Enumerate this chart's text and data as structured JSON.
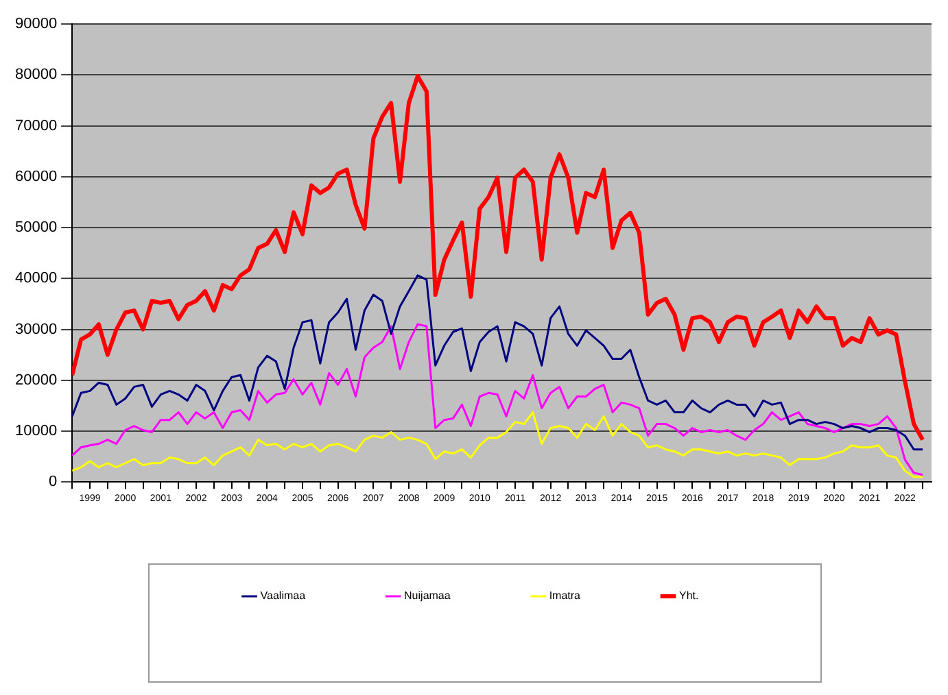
{
  "chart_data": {
    "type": "line",
    "x": [
      1999,
      1999.25,
      1999.5,
      1999.75,
      2000,
      2000.25,
      2000.5,
      2000.75,
      2001,
      2001.25,
      2001.5,
      2001.75,
      2002,
      2002.25,
      2002.5,
      2002.75,
      2003,
      2003.25,
      2003.5,
      2003.75,
      2004,
      2004.25,
      2004.5,
      2004.75,
      2005,
      2005.25,
      2005.5,
      2005.75,
      2006,
      2006.25,
      2006.5,
      2006.75,
      2007,
      2007.25,
      2007.5,
      2007.75,
      2008,
      2008.25,
      2008.5,
      2008.75,
      2009,
      2009.25,
      2009.5,
      2009.75,
      2010,
      2010.25,
      2010.5,
      2010.75,
      2011,
      2011.25,
      2011.5,
      2011.75,
      2012,
      2012.25,
      2012.5,
      2012.75,
      2013,
      2013.25,
      2013.5,
      2013.75,
      2014,
      2014.25,
      2014.5,
      2014.75,
      2015,
      2015.25,
      2015.5,
      2015.75,
      2016,
      2016.25,
      2016.5,
      2016.75,
      2017,
      2017.25,
      2017.5,
      2017.75,
      2018,
      2018.25,
      2018.5,
      2018.75,
      2019,
      2019.25,
      2019.5,
      2019.75,
      2020,
      2020.25,
      2020.5,
      2020.75,
      2021,
      2021.25,
      2021.5,
      2021.75,
      2022,
      2022.25,
      2022.5,
      2022.75,
      2023
    ],
    "series": [
      {
        "name": "Vaalimaa",
        "color": "#000080",
        "values": [
          12900,
          17500,
          17900,
          19500,
          19100,
          15200,
          16400,
          18700,
          19100,
          14800,
          17200,
          17900,
          17200,
          16000,
          19100,
          17900,
          14100,
          17900,
          20600,
          21000,
          16000,
          22500,
          24800,
          23700,
          18300,
          26400,
          31400,
          31800,
          23300,
          31400,
          33300,
          36000,
          26000,
          33700,
          36800,
          35600,
          29100,
          34500,
          37500,
          40600,
          39800,
          22900,
          26800,
          29500,
          30200,
          21800,
          27500,
          29500,
          30600,
          23700,
          31400,
          30600,
          29100,
          22900,
          32200,
          34500,
          29100,
          26800,
          29800,
          28300,
          26800,
          24200,
          24200,
          26000,
          20600,
          16000,
          15200,
          16000,
          13700,
          13700,
          16000,
          14500,
          13700,
          15200,
          16000,
          15200,
          15200,
          12900,
          16000,
          15200,
          15600,
          11400,
          12200,
          12200,
          11400,
          11800,
          11400,
          10600,
          11000,
          10600,
          9800,
          10600,
          10600,
          10200,
          9100,
          6400,
          6400
        ]
      },
      {
        "name": "Nuijamaa",
        "color": "#ff00ff",
        "values": [
          5200,
          6800,
          7200,
          7500,
          8300,
          7500,
          10200,
          11000,
          10200,
          9800,
          12200,
          12200,
          13700,
          11400,
          13700,
          12500,
          13700,
          10600,
          13700,
          14100,
          12200,
          17900,
          15600,
          17200,
          17500,
          20200,
          17200,
          19500,
          15200,
          21400,
          19100,
          22200,
          16800,
          24500,
          26400,
          27500,
          30600,
          22200,
          27500,
          31000,
          30600,
          10600,
          12200,
          12500,
          15200,
          11000,
          16800,
          17500,
          17200,
          12900,
          17900,
          16400,
          21000,
          14500,
          17500,
          18700,
          14500,
          16800,
          16800,
          18300,
          19100,
          13700,
          15600,
          15200,
          14500,
          9100,
          11400,
          11400,
          10600,
          9100,
          10600,
          9800,
          10200,
          9800,
          10200,
          9100,
          8300,
          10200,
          11400,
          13700,
          12200,
          12900,
          13700,
          11400,
          11000,
          10600,
          9800,
          10600,
          11400,
          11400,
          11000,
          11400,
          12900,
          10600,
          4400,
          1800,
          1400
        ]
      },
      {
        "name": "Imatra",
        "color": "#ffff00",
        "values": [
          2200,
          2900,
          4100,
          2900,
          3700,
          2900,
          3700,
          4500,
          3300,
          3700,
          3700,
          4800,
          4500,
          3700,
          3700,
          4800,
          3300,
          5200,
          6000,
          6800,
          5200,
          8300,
          7200,
          7500,
          6400,
          7500,
          6800,
          7500,
          6000,
          7200,
          7500,
          6800,
          6000,
          8300,
          9100,
          8700,
          9800,
          8300,
          8700,
          8300,
          7500,
          4500,
          6000,
          5600,
          6400,
          4800,
          7200,
          8700,
          8700,
          9800,
          11800,
          11400,
          13700,
          7500,
          10600,
          11000,
          10600,
          8700,
          11400,
          10200,
          12900,
          9100,
          11400,
          9800,
          9100,
          6800,
          7200,
          6400,
          6000,
          5200,
          6400,
          6400,
          6000,
          5600,
          6000,
          5200,
          5600,
          5200,
          5600,
          5200,
          4800,
          3300,
          4500,
          4500,
          4500,
          4800,
          5600,
          6000,
          7200,
          6800,
          6800,
          7200,
          5200,
          4800,
          2200,
          1000,
          1000
        ]
      },
      {
        "name": "Yht.",
        "color": "#ff0000",
        "values": [
          21000,
          28000,
          29000,
          31000,
          25000,
          30000,
          33300,
          33700,
          30000,
          35600,
          35200,
          35600,
          32000,
          34800,
          35600,
          37500,
          33700,
          38700,
          37900,
          40600,
          41800,
          46000,
          46800,
          49500,
          45200,
          53000,
          48700,
          58300,
          56800,
          57900,
          60600,
          61400,
          54500,
          49800,
          67500,
          71800,
          74500,
          59000,
          74500,
          79800,
          76800,
          36800,
          43700,
          47500,
          51000,
          36400,
          53700,
          56000,
          59800,
          45200,
          59800,
          61400,
          59000,
          43700,
          59800,
          64400,
          59800,
          49000,
          56800,
          56000,
          61400,
          46000,
          51400,
          52900,
          49000,
          32900,
          35200,
          36000,
          32900,
          26000,
          32200,
          32500,
          31400,
          27500,
          31400,
          32500,
          32200,
          26800,
          31400,
          32500,
          33700,
          28300,
          33700,
          31400,
          34500,
          32200,
          32200,
          26800,
          28300,
          27500,
          32200,
          29000,
          29800,
          29000,
          19800,
          11400,
          8300
        ]
      }
    ],
    "xlim": [
      1999,
      2023.25
    ],
    "xticks": [
      {
        "value": 1999,
        "label": null
      },
      {
        "value": 1999.5,
        "label": "1999"
      },
      {
        "value": 2000,
        "label": null
      },
      {
        "value": 2000.5,
        "label": "2000"
      },
      {
        "value": 2001,
        "label": null
      },
      {
        "value": 2001.5,
        "label": "2001"
      },
      {
        "value": 2002,
        "label": null
      },
      {
        "value": 2002.5,
        "label": "2002"
      },
      {
        "value": 2003,
        "label": null
      },
      {
        "value": 2003.5,
        "label": "2003"
      },
      {
        "value": 2004,
        "label": null
      },
      {
        "value": 2004.5,
        "label": "2004"
      },
      {
        "value": 2005,
        "label": null
      },
      {
        "value": 2005.5,
        "label": "2005"
      },
      {
        "value": 2006,
        "label": null
      },
      {
        "value": 2006.5,
        "label": "2006"
      },
      {
        "value": 2007,
        "label": null
      },
      {
        "value": 2007.5,
        "label": "2007"
      },
      {
        "value": 2008,
        "label": null
      },
      {
        "value": 2008.5,
        "label": "2008"
      },
      {
        "value": 2009,
        "label": null
      },
      {
        "value": 2009.5,
        "label": "2009"
      },
      {
        "value": 2010,
        "label": null
      },
      {
        "value": 2010.5,
        "label": "2010"
      },
      {
        "value": 2011,
        "label": null
      },
      {
        "value": 2011.5,
        "label": "2011"
      },
      {
        "value": 2012,
        "label": null
      },
      {
        "value": 2012.5,
        "label": "2012"
      },
      {
        "value": 2013,
        "label": null
      },
      {
        "value": 2013.5,
        "label": "2013"
      },
      {
        "value": 2014,
        "label": null
      },
      {
        "value": 2014.5,
        "label": "2014"
      },
      {
        "value": 2015,
        "label": null
      },
      {
        "value": 2015.5,
        "label": "2015"
      },
      {
        "value": 2016,
        "label": null
      },
      {
        "value": 2016.5,
        "label": "2016"
      },
      {
        "value": 2017,
        "label": null
      },
      {
        "value": 2017.5,
        "label": "2017"
      },
      {
        "value": 2018,
        "label": null
      },
      {
        "value": 2018.5,
        "label": "2018"
      },
      {
        "value": 2019,
        "label": null
      },
      {
        "value": 2019.5,
        "label": "2019"
      },
      {
        "value": 2020,
        "label": null
      },
      {
        "value": 2020.5,
        "label": "2020"
      },
      {
        "value": 2021,
        "label": null
      },
      {
        "value": 2021.5,
        "label": "2021"
      },
      {
        "value": 2022,
        "label": null
      },
      {
        "value": 2022.5,
        "label": "2022"
      },
      {
        "value": 2023,
        "label": null
      }
    ],
    "ylim": [
      0,
      90000
    ],
    "yticks": [
      0,
      10000,
      20000,
      30000,
      40000,
      50000,
      60000,
      70000,
      80000,
      90000
    ],
    "grid": "y",
    "legend": "bottom"
  }
}
